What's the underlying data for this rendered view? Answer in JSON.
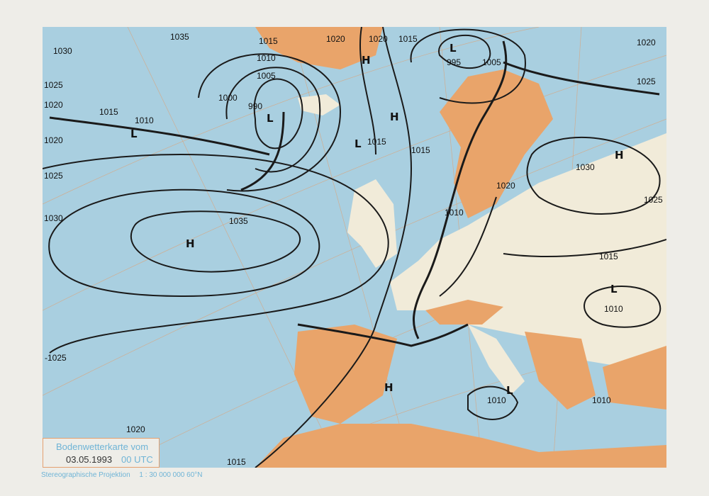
{
  "map": {
    "colors": {
      "sea": "#a9cfe0",
      "land": "#f1ebd9",
      "highland": "#e9a46a",
      "isobar": "#1a1a1a",
      "grid": "#e0a070"
    },
    "isobar_labels": [
      "1035",
      "1030",
      "1025",
      "1020",
      "1015",
      "1010",
      "1015",
      "1010",
      "1005",
      "1000",
      "990",
      "1020",
      "1020",
      "1015",
      "995",
      "1005",
      "1015",
      "1015",
      "1020",
      "1025",
      "1030",
      "1035",
      "1020",
      "1010",
      "1030",
      "1025",
      "1020",
      "1025",
      "1015",
      "1010",
      "1010",
      "1010",
      "-1025",
      "1020",
      "1015"
    ],
    "pressure_centers": [
      "H",
      "H",
      "L",
      "L",
      "L",
      "L",
      "H",
      "H",
      "L",
      "H",
      "L"
    ]
  },
  "legend": {
    "title": "Bodenwetterkarte vom",
    "date": "03.05.1993",
    "time": "00 UTC"
  },
  "footer": {
    "projection": "Stereographische Projektion",
    "scale": "1 : 30 000 000  60°N"
  }
}
